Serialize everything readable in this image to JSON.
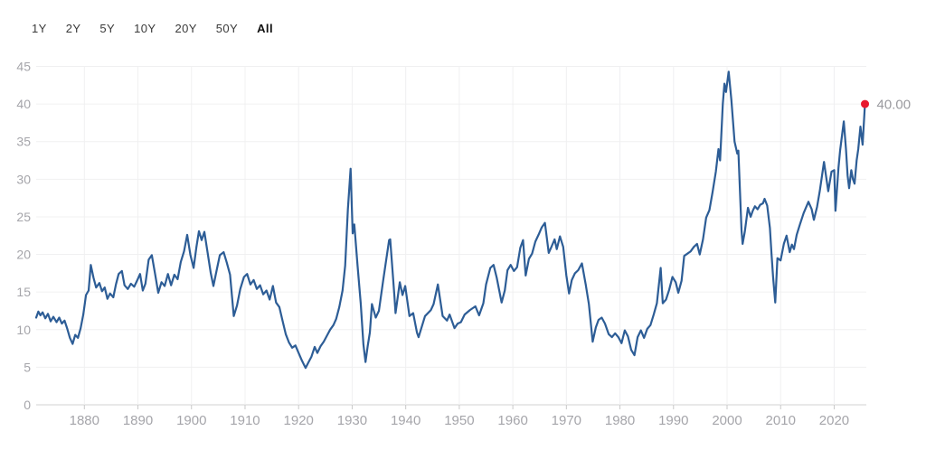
{
  "toolbar": {
    "ranges": [
      {
        "label": "1Y",
        "selected": false
      },
      {
        "label": "2Y",
        "selected": false
      },
      {
        "label": "5Y",
        "selected": false
      },
      {
        "label": "10Y",
        "selected": false
      },
      {
        "label": "20Y",
        "selected": false
      },
      {
        "label": "50Y",
        "selected": false
      },
      {
        "label": "All",
        "selected": true
      }
    ]
  },
  "chart_data": {
    "type": "line",
    "title": "",
    "xlabel": "",
    "ylabel": "",
    "xlim": [
      1871,
      2026
    ],
    "ylim": [
      0,
      45
    ],
    "grid": true,
    "x_ticks": [
      1880,
      1890,
      1900,
      1910,
      1920,
      1930,
      1940,
      1950,
      1960,
      1970,
      1980,
      1990,
      2000,
      2010,
      2020
    ],
    "y_ticks": [
      0,
      5,
      10,
      15,
      20,
      25,
      30,
      35,
      40,
      45
    ],
    "last_value_label": "40.00",
    "last_point": [
      2025.75,
      40.0
    ],
    "colors": {
      "line": "#2d5d96",
      "marker": "#e8182e",
      "grid": "#f0f0f1",
      "axis_line": "#d2d2d2",
      "tick": "#c9c9c9",
      "axis_label": "#a5a5aa",
      "value_label": "#9a9a9f"
    },
    "points": [
      [
        1871.0,
        11.6
      ],
      [
        1871.4,
        12.4
      ],
      [
        1871.8,
        11.9
      ],
      [
        1872.2,
        12.3
      ],
      [
        1872.7,
        11.5
      ],
      [
        1873.2,
        12.1
      ],
      [
        1873.7,
        11.1
      ],
      [
        1874.2,
        11.7
      ],
      [
        1874.8,
        11.0
      ],
      [
        1875.3,
        11.6
      ],
      [
        1875.8,
        10.8
      ],
      [
        1876.3,
        11.2
      ],
      [
        1876.8,
        10.1
      ],
      [
        1877.3,
        8.9
      ],
      [
        1877.8,
        8.1
      ],
      [
        1878.3,
        9.3
      ],
      [
        1878.8,
        8.9
      ],
      [
        1879.3,
        10.2
      ],
      [
        1879.8,
        12.0
      ],
      [
        1880.3,
        14.6
      ],
      [
        1880.8,
        15.2
      ],
      [
        1881.2,
        18.6
      ],
      [
        1881.7,
        16.9
      ],
      [
        1882.2,
        15.6
      ],
      [
        1882.8,
        16.2
      ],
      [
        1883.3,
        15.1
      ],
      [
        1883.8,
        15.6
      ],
      [
        1884.3,
        14.1
      ],
      [
        1884.8,
        14.8
      ],
      [
        1885.4,
        14.3
      ],
      [
        1885.9,
        16.0
      ],
      [
        1886.4,
        17.4
      ],
      [
        1887.0,
        17.8
      ],
      [
        1887.5,
        15.9
      ],
      [
        1888.1,
        15.4
      ],
      [
        1888.7,
        16.1
      ],
      [
        1889.3,
        15.7
      ],
      [
        1889.9,
        16.6
      ],
      [
        1890.4,
        17.4
      ],
      [
        1890.9,
        15.2
      ],
      [
        1891.4,
        16.1
      ],
      [
        1892.0,
        19.3
      ],
      [
        1892.6,
        19.9
      ],
      [
        1893.2,
        17.4
      ],
      [
        1893.8,
        14.9
      ],
      [
        1894.4,
        16.3
      ],
      [
        1895.0,
        15.8
      ],
      [
        1895.6,
        17.4
      ],
      [
        1896.2,
        15.9
      ],
      [
        1896.8,
        17.3
      ],
      [
        1897.4,
        16.7
      ],
      [
        1898.0,
        19.0
      ],
      [
        1898.6,
        20.4
      ],
      [
        1899.2,
        22.6
      ],
      [
        1899.8,
        19.9
      ],
      [
        1900.4,
        18.2
      ],
      [
        1900.9,
        20.9
      ],
      [
        1901.4,
        23.1
      ],
      [
        1901.9,
        21.9
      ],
      [
        1902.4,
        23.0
      ],
      [
        1903.0,
        20.3
      ],
      [
        1903.6,
        17.5
      ],
      [
        1904.1,
        15.8
      ],
      [
        1904.7,
        17.9
      ],
      [
        1905.3,
        19.9
      ],
      [
        1906.0,
        20.3
      ],
      [
        1906.6,
        18.9
      ],
      [
        1907.2,
        17.3
      ],
      [
        1907.9,
        11.8
      ],
      [
        1908.5,
        13.2
      ],
      [
        1909.1,
        15.4
      ],
      [
        1909.8,
        17.0
      ],
      [
        1910.4,
        17.4
      ],
      [
        1911.0,
        16.0
      ],
      [
        1911.6,
        16.6
      ],
      [
        1912.2,
        15.4
      ],
      [
        1912.8,
        15.9
      ],
      [
        1913.4,
        14.7
      ],
      [
        1914.0,
        15.2
      ],
      [
        1914.6,
        14.0
      ],
      [
        1915.2,
        15.8
      ],
      [
        1915.8,
        13.6
      ],
      [
        1916.4,
        13.0
      ],
      [
        1917.0,
        11.2
      ],
      [
        1917.6,
        9.4
      ],
      [
        1918.2,
        8.3
      ],
      [
        1918.8,
        7.6
      ],
      [
        1919.4,
        7.9
      ],
      [
        1920.0,
        6.9
      ],
      [
        1920.6,
        5.9
      ],
      [
        1921.3,
        4.9
      ],
      [
        1921.8,
        5.6
      ],
      [
        1922.4,
        6.4
      ],
      [
        1923.0,
        7.7
      ],
      [
        1923.5,
        6.9
      ],
      [
        1924.1,
        7.8
      ],
      [
        1924.7,
        8.4
      ],
      [
        1925.3,
        9.2
      ],
      [
        1925.9,
        10.0
      ],
      [
        1926.5,
        10.6
      ],
      [
        1927.0,
        11.4
      ],
      [
        1927.6,
        13.0
      ],
      [
        1928.2,
        15.2
      ],
      [
        1928.7,
        18.5
      ],
      [
        1929.2,
        26.0
      ],
      [
        1929.7,
        31.4
      ],
      [
        1930.1,
        22.8
      ],
      [
        1930.4,
        24.0
      ],
      [
        1931.0,
        18.5
      ],
      [
        1931.6,
        13.5
      ],
      [
        1932.1,
        8.0
      ],
      [
        1932.5,
        5.7
      ],
      [
        1932.9,
        7.8
      ],
      [
        1933.3,
        9.6
      ],
      [
        1933.7,
        13.4
      ],
      [
        1934.4,
        11.6
      ],
      [
        1935.0,
        12.5
      ],
      [
        1935.8,
        16.6
      ],
      [
        1936.9,
        21.9
      ],
      [
        1937.1,
        22.0
      ],
      [
        1937.9,
        14.4
      ],
      [
        1938.1,
        12.2
      ],
      [
        1938.9,
        16.3
      ],
      [
        1939.4,
        14.6
      ],
      [
        1939.9,
        15.8
      ],
      [
        1940.7,
        11.8
      ],
      [
        1941.4,
        12.2
      ],
      [
        1942.1,
        9.6
      ],
      [
        1942.4,
        9.0
      ],
      [
        1943.6,
        11.8
      ],
      [
        1944.7,
        12.6
      ],
      [
        1945.2,
        13.4
      ],
      [
        1946.0,
        16.0
      ],
      [
        1946.9,
        11.8
      ],
      [
        1947.7,
        11.2
      ],
      [
        1948.2,
        12.0
      ],
      [
        1949.1,
        10.2
      ],
      [
        1949.7,
        10.8
      ],
      [
        1950.3,
        11.0
      ],
      [
        1951.0,
        12.0
      ],
      [
        1952.0,
        12.6
      ],
      [
        1953.0,
        13.1
      ],
      [
        1953.7,
        11.9
      ],
      [
        1954.5,
        13.5
      ],
      [
        1955.0,
        16.0
      ],
      [
        1955.8,
        18.2
      ],
      [
        1956.4,
        18.6
      ],
      [
        1957.0,
        16.9
      ],
      [
        1957.9,
        13.6
      ],
      [
        1958.5,
        15.2
      ],
      [
        1959.0,
        17.9
      ],
      [
        1959.6,
        18.6
      ],
      [
        1960.2,
        17.8
      ],
      [
        1960.8,
        18.3
      ],
      [
        1961.4,
        20.9
      ],
      [
        1961.9,
        21.9
      ],
      [
        1962.4,
        17.2
      ],
      [
        1963.0,
        19.4
      ],
      [
        1963.6,
        20.1
      ],
      [
        1964.2,
        21.7
      ],
      [
        1964.8,
        22.6
      ],
      [
        1965.4,
        23.6
      ],
      [
        1966.0,
        24.2
      ],
      [
        1966.7,
        20.2
      ],
      [
        1967.2,
        21.0
      ],
      [
        1967.8,
        22.0
      ],
      [
        1968.2,
        20.7
      ],
      [
        1968.8,
        22.4
      ],
      [
        1969.4,
        21.0
      ],
      [
        1970.0,
        17.2
      ],
      [
        1970.5,
        14.8
      ],
      [
        1971.0,
        16.6
      ],
      [
        1971.6,
        17.5
      ],
      [
        1972.2,
        17.9
      ],
      [
        1972.9,
        18.8
      ],
      [
        1973.6,
        16.0
      ],
      [
        1974.2,
        13.4
      ],
      [
        1974.9,
        8.4
      ],
      [
        1975.5,
        10.3
      ],
      [
        1976.0,
        11.3
      ],
      [
        1976.6,
        11.6
      ],
      [
        1977.2,
        10.8
      ],
      [
        1977.9,
        9.4
      ],
      [
        1978.5,
        9.0
      ],
      [
        1979.1,
        9.5
      ],
      [
        1979.7,
        9.0
      ],
      [
        1980.3,
        8.2
      ],
      [
        1980.9,
        9.9
      ],
      [
        1981.5,
        9.1
      ],
      [
        1982.1,
        7.3
      ],
      [
        1982.7,
        6.6
      ],
      [
        1983.3,
        9.0
      ],
      [
        1983.9,
        9.9
      ],
      [
        1984.5,
        8.9
      ],
      [
        1985.1,
        10.1
      ],
      [
        1985.7,
        10.6
      ],
      [
        1986.3,
        12.0
      ],
      [
        1986.9,
        13.5
      ],
      [
        1987.6,
        18.2
      ],
      [
        1988.0,
        13.5
      ],
      [
        1988.6,
        14.0
      ],
      [
        1989.2,
        15.3
      ],
      [
        1989.8,
        17.0
      ],
      [
        1990.4,
        16.3
      ],
      [
        1990.9,
        14.9
      ],
      [
        1991.5,
        16.5
      ],
      [
        1992.0,
        19.8
      ],
      [
        1992.6,
        20.1
      ],
      [
        1993.2,
        20.4
      ],
      [
        1993.8,
        21.0
      ],
      [
        1994.4,
        21.4
      ],
      [
        1994.9,
        20.0
      ],
      [
        1995.5,
        22.0
      ],
      [
        1996.1,
        24.9
      ],
      [
        1996.7,
        25.9
      ],
      [
        1997.3,
        28.3
      ],
      [
        1997.9,
        31.0
      ],
      [
        1998.4,
        34.0
      ],
      [
        1998.7,
        32.5
      ],
      [
        1999.2,
        40.0
      ],
      [
        1999.5,
        42.7
      ],
      [
        1999.8,
        41.6
      ],
      [
        2000.3,
        44.3
      ],
      [
        2000.8,
        40.5
      ],
      [
        2001.4,
        35.0
      ],
      [
        2001.9,
        33.4
      ],
      [
        2002.1,
        33.8
      ],
      [
        2002.7,
        23.2
      ],
      [
        2002.9,
        21.4
      ],
      [
        2003.3,
        23.0
      ],
      [
        2003.9,
        26.2
      ],
      [
        2004.4,
        25.0
      ],
      [
        2004.8,
        25.8
      ],
      [
        2005.2,
        26.4
      ],
      [
        2005.7,
        26.0
      ],
      [
        2006.2,
        26.6
      ],
      [
        2006.7,
        26.8
      ],
      [
        2007.0,
        27.4
      ],
      [
        2007.5,
        26.5
      ],
      [
        2008.0,
        23.5
      ],
      [
        2008.3,
        20.0
      ],
      [
        2008.6,
        17.0
      ],
      [
        2009.0,
        13.6
      ],
      [
        2009.4,
        19.5
      ],
      [
        2010.0,
        19.2
      ],
      [
        2010.6,
        21.4
      ],
      [
        2011.1,
        22.5
      ],
      [
        2011.7,
        20.3
      ],
      [
        2012.1,
        21.3
      ],
      [
        2012.5,
        20.7
      ],
      [
        2013.0,
        22.6
      ],
      [
        2013.6,
        24.0
      ],
      [
        2014.3,
        25.5
      ],
      [
        2015.2,
        27.0
      ],
      [
        2015.8,
        26.0
      ],
      [
        2016.2,
        24.6
      ],
      [
        2016.8,
        26.3
      ],
      [
        2017.3,
        28.4
      ],
      [
        2017.8,
        30.8
      ],
      [
        2018.1,
        32.3
      ],
      [
        2018.9,
        28.4
      ],
      [
        2019.5,
        31.0
      ],
      [
        2020.0,
        31.2
      ],
      [
        2020.25,
        25.8
      ],
      [
        2020.8,
        31.5
      ],
      [
        2021.1,
        33.8
      ],
      [
        2021.8,
        37.7
      ],
      [
        2022.2,
        34.0
      ],
      [
        2022.5,
        30.5
      ],
      [
        2022.8,
        28.8
      ],
      [
        2023.2,
        31.2
      ],
      [
        2023.5,
        30.0
      ],
      [
        2023.8,
        29.4
      ],
      [
        2024.2,
        32.5
      ],
      [
        2024.5,
        34.0
      ],
      [
        2024.9,
        37.0
      ],
      [
        2025.3,
        34.6
      ],
      [
        2025.75,
        40.0
      ]
    ]
  }
}
